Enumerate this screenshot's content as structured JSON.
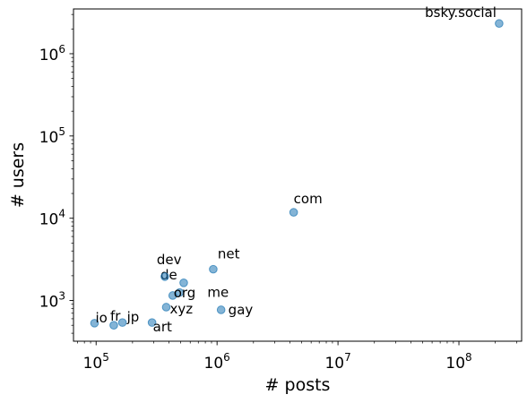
{
  "chart_data": {
    "type": "scatter",
    "xlabel": "# posts",
    "ylabel": "# users",
    "xscale": "log",
    "yscale": "log",
    "xlim": [
      65000,
      330000000
    ],
    "ylim": [
      320,
      3500000
    ],
    "xticks": [
      100000,
      1000000,
      10000000,
      100000000
    ],
    "yticks": [
      1000,
      10000,
      100000,
      1000000
    ],
    "grid": false,
    "color": "#1f77b4",
    "points": [
      {
        "label": "bsky.social",
        "x": 215000000,
        "y": 2330000
      },
      {
        "label": "com",
        "x": 4300000,
        "y": 11800
      },
      {
        "label": "net",
        "x": 930000,
        "y": 2400
      },
      {
        "label": "de",
        "x": 530000,
        "y": 1640
      },
      {
        "label": "dev",
        "x": 370000,
        "y": 1950
      },
      {
        "label": "me",
        "x": 490000,
        "y": 1250
      },
      {
        "label": "org",
        "x": 430000,
        "y": 1150
      },
      {
        "label": "xyz",
        "x": 380000,
        "y": 830
      },
      {
        "label": "gay",
        "x": 1080000,
        "y": 770
      },
      {
        "label": "art",
        "x": 290000,
        "y": 540
      },
      {
        "label": "jp",
        "x": 165000,
        "y": 540
      },
      {
        "label": "fr",
        "x": 140000,
        "y": 500
      },
      {
        "label": "io",
        "x": 97000,
        "y": 530
      }
    ]
  }
}
